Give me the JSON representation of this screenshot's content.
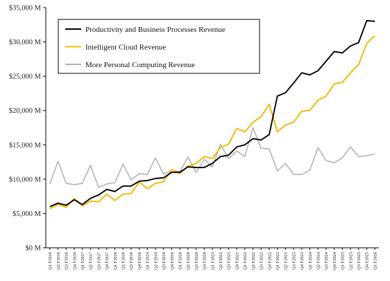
{
  "chart_data": {
    "type": "line",
    "ylim": [
      0,
      35000
    ],
    "yticks": [
      0,
      5000,
      10000,
      15000,
      20000,
      25000,
      30000,
      35000
    ],
    "ytick_labels": [
      "$0 M",
      "$5,000 M",
      "$10,000 M",
      "$15,000 M",
      "$20,000 M",
      "$25,000 M",
      "$30,000 M",
      "$35,000 M"
    ],
    "grid": false,
    "legend_position": "top-left",
    "categories": [
      "Q1 F2016",
      "Q2 F2016",
      "Q3 F2016",
      "Q4 F2016",
      "Q1 F2017",
      "Q2 F2017",
      "Q3 F2017",
      "Q4 F2017",
      "Q1 F2018",
      "Q2 F2018",
      "Q3 F2018",
      "Q4 F2018",
      "Q1 F2019",
      "Q2 F2019",
      "Q3 F2019",
      "Q4 F2019",
      "Q1 F2020",
      "Q2 F2020",
      "Q3 F2020",
      "Q4 F2020",
      "Q1 F2021",
      "Q2 F2021",
      "Q3 F2021",
      "Q4 F2021",
      "Q1 F2022",
      "Q2 F2022",
      "Q3 F2022",
      "Q4 F2022",
      "Q1 F2023",
      "Q2 F2023",
      "Q3 F2023",
      "Q4 F2023",
      "Q1 F2024",
      "Q2 F2024",
      "Q3 F2024",
      "Q4 F2024",
      "Q1 F2025",
      "Q2 F2025",
      "Q3 F2025",
      "Q4 F2025",
      "Q1 F2026"
    ],
    "series": [
      {
        "name": "Productivity and Business Processes Revenue",
        "color": "#000000",
        "values": [
          6000,
          6500,
          6200,
          7000,
          6300,
          7200,
          7700,
          8500,
          8200,
          9000,
          9000,
          9700,
          9800,
          10100,
          10200,
          11000,
          11000,
          11800,
          11700,
          11700,
          12300,
          13300,
          13500,
          14700,
          15000,
          15900,
          15700,
          16500,
          22100,
          22600,
          24000,
          25500,
          25200,
          25800,
          27200,
          28600,
          28400,
          29400,
          29900,
          33100,
          33000
        ]
      },
      {
        "name": "Intelligent Cloud Revenue",
        "color": "#f0b800",
        "values": [
          5700,
          6300,
          5900,
          7200,
          6100,
          6800,
          6700,
          7800,
          6900,
          7800,
          7900,
          9600,
          8600,
          9400,
          9600,
          11400,
          10800,
          11900,
          12300,
          13300,
          13000,
          14600,
          15100,
          17400,
          16900,
          18300,
          19100,
          20900,
          16900,
          17900,
          18300,
          19900,
          20000,
          21500,
          22100,
          23900,
          24100,
          25500,
          26700,
          29800,
          30900
        ]
      },
      {
        "name": "More Personal Computing Revenue",
        "color": "#b3b3b3",
        "values": [
          9300,
          12600,
          9400,
          9200,
          9400,
          12000,
          8800,
          9300,
          9500,
          12200,
          9900,
          10800,
          10700,
          13100,
          10700,
          11300,
          11100,
          13200,
          11000,
          12900,
          11800,
          15100,
          13000,
          14100,
          13300,
          17500,
          14500,
          14400,
          11200,
          12300,
          10700,
          10700,
          11300,
          14600,
          12700,
          12400,
          13100,
          14700,
          13300,
          13400,
          13700
        ]
      }
    ]
  }
}
